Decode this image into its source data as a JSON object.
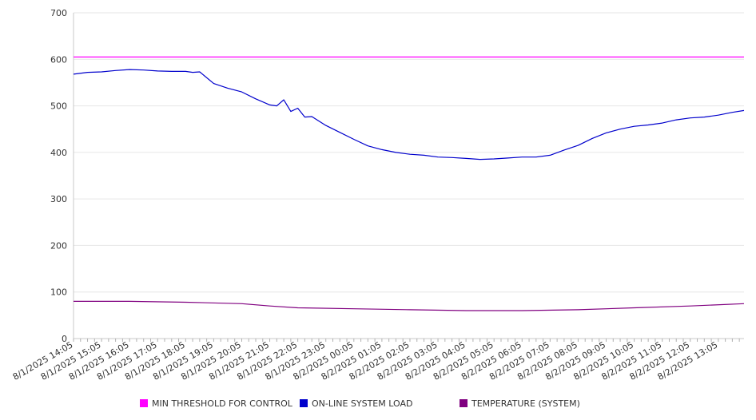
{
  "chart_data": {
    "type": "line",
    "title": "",
    "xlabel": "",
    "ylabel": "",
    "ylim": [
      0,
      700
    ],
    "yticks": [
      "0",
      "100",
      "200",
      "300",
      "400",
      "500",
      "600",
      "700"
    ],
    "xtick_labels": [
      "8/1/2025 14:05",
      "8/1/2025 15:05",
      "8/1/2025 16:05",
      "8/1/2025 17:05",
      "8/1/2025 18:05",
      "8/1/2025 19:05",
      "8/1/2025 20:05",
      "8/1/2025 21:05",
      "8/1/2025 22:05",
      "8/1/2025 23:05",
      "8/2/2025 00:05",
      "8/2/2025 01:05",
      "8/2/2025 02:05",
      "8/2/2025 03:05",
      "8/2/2025 04:05",
      "8/2/2025 05:05",
      "8/2/2025 06:05",
      "8/2/2025 07:05",
      "8/2/2025 08:05",
      "8/2/2025 09:05",
      "8/2/2025 10:05",
      "8/2/2025 11:05",
      "8/2/2025 12:05",
      "8/2/2025 13:05"
    ],
    "x_range": [
      "8/1/2025 14:05",
      "8/2/2025 14:00"
    ],
    "grid": "horizontal",
    "legend_position": "bottom",
    "series": [
      {
        "name": "MIN THRESHOLD FOR CONTROL",
        "color": "#ff00ff",
        "x": [
          "8/1/2025 14:05",
          "8/2/2025 14:00"
        ],
        "y": [
          605,
          605
        ]
      },
      {
        "name": "ON-LINE SYSTEM LOAD",
        "color": "#0000cc",
        "x": [
          "8/1/2025 14:05",
          "8/1/2025 14:35",
          "8/1/2025 15:05",
          "8/1/2025 15:35",
          "8/1/2025 16:05",
          "8/1/2025 16:35",
          "8/1/2025 17:05",
          "8/1/2025 17:35",
          "8/1/2025 18:05",
          "8/1/2025 18:20",
          "8/1/2025 18:35",
          "8/1/2025 19:05",
          "8/1/2025 19:35",
          "8/1/2025 20:05",
          "8/1/2025 20:35",
          "8/1/2025 21:05",
          "8/1/2025 21:20",
          "8/1/2025 21:35",
          "8/1/2025 21:50",
          "8/1/2025 22:05",
          "8/1/2025 22:20",
          "8/1/2025 22:35",
          "8/1/2025 23:05",
          "8/1/2025 23:35",
          "8/2/2025 00:05",
          "8/2/2025 00:35",
          "8/2/2025 01:05",
          "8/2/2025 01:35",
          "8/2/2025 02:05",
          "8/2/2025 02:35",
          "8/2/2025 03:05",
          "8/2/2025 03:35",
          "8/2/2025 04:05",
          "8/2/2025 04:35",
          "8/2/2025 05:05",
          "8/2/2025 05:35",
          "8/2/2025 06:05",
          "8/2/2025 06:35",
          "8/2/2025 07:05",
          "8/2/2025 07:35",
          "8/2/2025 08:05",
          "8/2/2025 08:35",
          "8/2/2025 09:05",
          "8/2/2025 09:35",
          "8/2/2025 10:05",
          "8/2/2025 10:35",
          "8/2/2025 11:05",
          "8/2/2025 11:35",
          "8/2/2025 12:05",
          "8/2/2025 12:35",
          "8/2/2025 13:05",
          "8/2/2025 13:35",
          "8/2/2025 14:00"
        ],
        "y": [
          568,
          572,
          573,
          576,
          578,
          577,
          575,
          574,
          574,
          572,
          573,
          548,
          538,
          530,
          515,
          502,
          500,
          513,
          488,
          495,
          476,
          477,
          458,
          443,
          428,
          414,
          406,
          400,
          396,
          394,
          390,
          389,
          387,
          385,
          386,
          388,
          390,
          390,
          394,
          405,
          415,
          430,
          442,
          450,
          456,
          459,
          463,
          470,
          474,
          476,
          480,
          486,
          490
        ]
      },
      {
        "name": "TEMPERATURE (SYSTEM)",
        "color": "#800080",
        "x": [
          "8/1/2025 14:05",
          "8/1/2025 16:05",
          "8/1/2025 18:05",
          "8/1/2025 20:05",
          "8/1/2025 21:05",
          "8/1/2025 22:05",
          "8/2/2025 00:05",
          "8/2/2025 02:05",
          "8/2/2025 04:05",
          "8/2/2025 06:05",
          "8/2/2025 08:05",
          "8/2/2025 10:05",
          "8/2/2025 12:05",
          "8/2/2025 14:00"
        ],
        "y": [
          80,
          80,
          78,
          75,
          70,
          66,
          64,
          62,
          60,
          60,
          62,
          66,
          70,
          75
        ]
      }
    ]
  }
}
